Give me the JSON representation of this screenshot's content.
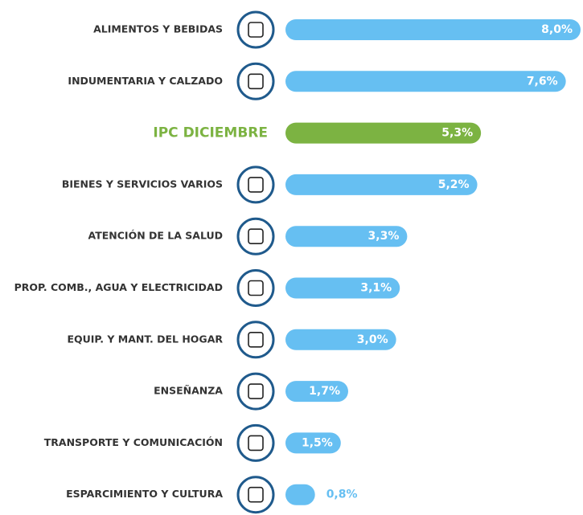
{
  "chart_data": {
    "type": "bar",
    "orientation": "horizontal",
    "categories": [
      "ALIMENTOS Y BEBIDAS",
      "INDUMENTARIA Y CALZADO",
      "IPC DICIEMBRE",
      "BIENES Y SERVICIOS VARIOS",
      "ATENCIÓN DE LA SALUD",
      "PROP. COMB., AGUA Y ELECTRICIDAD",
      "EQUIP. Y MANT. DEL HOGAR",
      "ENSEÑANZA",
      "TRANSPORTE Y COMUNICACIÓN",
      "ESPARCIMIENTO Y CULTURA"
    ],
    "values": [
      8.0,
      7.6,
      5.3,
      5.2,
      3.3,
      3.1,
      3.0,
      1.7,
      1.5,
      0.8
    ],
    "value_labels": [
      "8,0%",
      "7,6%",
      "5,3%",
      "5,2%",
      "3,3%",
      "3,1%",
      "3,0%",
      "1,7%",
      "1,5%",
      "0,8%"
    ],
    "colors": [
      "#66bff2",
      "#66bff2",
      "#7cb342",
      "#66bff2",
      "#66bff2",
      "#66bff2",
      "#66bff2",
      "#66bff2",
      "#66bff2",
      "#66bff2"
    ]
  }
}
